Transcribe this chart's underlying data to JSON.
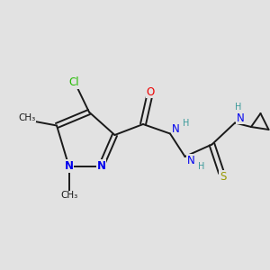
{
  "bg_color": "#e2e2e2",
  "bond_color": "#1a1a1a",
  "bond_width": 1.4,
  "atom_colors": {
    "C": "#1a1a1a",
    "N": "#0000ee",
    "O": "#ee0000",
    "Cl": "#22bb00",
    "S": "#999900",
    "H": "#3a9a9a"
  },
  "font_size_atom": 8.5,
  "font_size_small": 7.0,
  "font_size_methyl": 7.5
}
